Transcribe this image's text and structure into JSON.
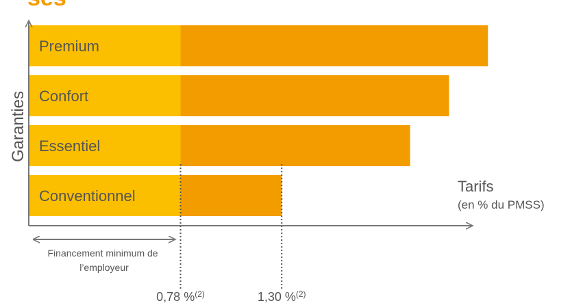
{
  "chart_data": {
    "type": "bar",
    "orientation": "horizontal",
    "stacked": true,
    "categories": [
      "Premium",
      "Confort",
      "Essentiel",
      "Conventionnel"
    ],
    "series": [
      {
        "values": [
          0.78,
          0.78,
          0.78,
          0.78
        ],
        "color": "#FBBF00"
      },
      {
        "values": [
          1.58,
          1.38,
          1.18,
          0.52
        ],
        "color": "#F39C00"
      }
    ],
    "ylabel": "Garanties",
    "xlabel": "Tarifs",
    "xlabel_sub": "(en % du PMSS)",
    "annotation": "Financement minimum de l’employeur",
    "ticks": [
      {
        "value": 0.78,
        "label": "0,78 %",
        "sup": "(2)"
      },
      {
        "value": 1.3,
        "label": "1,30 %",
        "sup": "(2)"
      }
    ],
    "header_fragment": "ses"
  },
  "colors": {
    "axis": "#777777",
    "text": "#555555",
    "accent": "#F39C00"
  }
}
